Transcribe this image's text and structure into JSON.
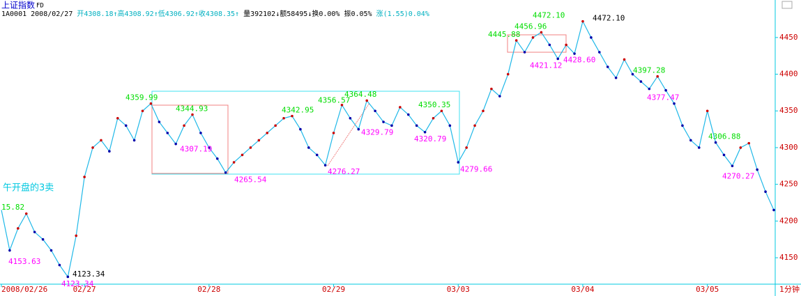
{
  "chart_data": {
    "type": "line",
    "title": "上证指数",
    "subtitle": "FD",
    "info": [
      "1A0001 2008/02/27",
      "开4308.18↑高4308.92↑低4306.92↑收4308.35↑",
      "量392102↓额58495↓换0.00% 振0.05%",
      "涨(1.55)0.04%"
    ],
    "note": "午开盘的3卖",
    "period": "1分钟",
    "categories": [
      "2008/02/26",
      null,
      null,
      null,
      null,
      null,
      null,
      null,
      null,
      null,
      "02/27",
      null,
      null,
      null,
      null,
      null,
      null,
      null,
      null,
      null,
      null,
      null,
      null,
      null,
      null,
      "02/28",
      null,
      null,
      null,
      null,
      null,
      null,
      null,
      null,
      null,
      null,
      null,
      null,
      null,
      null,
      "02/29",
      null,
      null,
      null,
      null,
      null,
      null,
      null,
      null,
      null,
      null,
      null,
      null,
      null,
      null,
      "03/03",
      null,
      null,
      null,
      null,
      null,
      null,
      null,
      null,
      null,
      null,
      null,
      null,
      null,
      null,
      "03/04",
      null,
      null,
      null,
      null,
      null,
      null,
      null,
      null,
      null,
      null,
      null,
      null,
      null,
      null,
      "03/05",
      null,
      null,
      null,
      null,
      null,
      null,
      null,
      null
    ],
    "series": [
      {
        "color": "#1fb8e8",
        "values": [
          4215,
          4160,
          4190,
          4210,
          4185,
          4175,
          4160,
          4140,
          4124,
          4180,
          4260,
          4300,
          4310,
          4295,
          4340,
          4330,
          4310,
          4350,
          4360,
          4335,
          4320,
          4305,
          4330,
          4345,
          4320,
          4300,
          4285,
          4266,
          4280,
          4290,
          4300,
          4310,
          4320,
          4330,
          4340,
          4343,
          4325,
          4300,
          4290,
          4276,
          4320,
          4358,
          4340,
          4325,
          4364,
          4350,
          4335,
          4330,
          4355,
          4345,
          4330,
          4321,
          4340,
          4350,
          4330,
          4280,
          4300,
          4330,
          4350,
          4380,
          4370,
          4400,
          4446,
          4430,
          4450,
          4457,
          4440,
          4421,
          4440,
          4428,
          4472,
          4450,
          4430,
          4410,
          4395,
          4420,
          4400,
          4390,
          4380,
          4397,
          4378,
          4360,
          4330,
          4310,
          4300,
          4350,
          4307,
          4290,
          4275,
          4300,
          4306,
          4270,
          4240,
          4215
        ]
      }
    ],
    "ylim": [
      4114,
      4484
    ],
    "yticks": [
      4150,
      4200,
      4250,
      4300,
      4350,
      4400,
      4450
    ],
    "annotations": [
      {
        "label": "15.82",
        "color": "#00dd00"
      },
      {
        "label": "4153.63",
        "value": 4153.63,
        "color": "#ff00ff"
      },
      {
        "label": "4123.34",
        "value": 4123.34,
        "color": "#ff00ff"
      },
      {
        "label": "4123.34",
        "value": 4123.34,
        "color": "#000000"
      },
      {
        "label": "4359.99",
        "value": 4359.99,
        "color": "#00dd00"
      },
      {
        "label": "4344.93",
        "value": 4344.93,
        "color": "#00dd00"
      },
      {
        "label": "4307.19",
        "value": 4307.19,
        "color": "#ff00ff"
      },
      {
        "label": "4265.54",
        "value": 4265.54,
        "color": "#ff00ff"
      },
      {
        "label": "4342.95",
        "value": 4342.95,
        "color": "#00dd00"
      },
      {
        "label": "4356.57",
        "value": 4356.57,
        "color": "#00dd00"
      },
      {
        "label": "4364.48",
        "value": 4364.48,
        "color": "#00dd00"
      },
      {
        "label": "4329.79",
        "value": 4329.79,
        "color": "#ff00ff"
      },
      {
        "label": "4276.27",
        "value": 4276.27,
        "color": "#ff00ff"
      },
      {
        "label": "4320.79",
        "value": 4320.79,
        "color": "#ff00ff"
      },
      {
        "label": "4350.35",
        "value": 4350.35,
        "color": "#00dd00"
      },
      {
        "label": "4279.66",
        "value": 4279.66,
        "color": "#ff00ff"
      },
      {
        "label": "4445.88",
        "value": 4445.88,
        "color": "#00dd00"
      },
      {
        "label": "4456.96",
        "value": 4456.96,
        "color": "#00dd00"
      },
      {
        "label": "4472.10",
        "value": 4472.1,
        "color": "#00dd00"
      },
      {
        "label": "4472.10",
        "value": 4472.1,
        "color": "#000000"
      },
      {
        "label": "4421.12",
        "value": 4421.12,
        "color": "#ff00ff"
      },
      {
        "label": "4428.60",
        "value": 4428.6,
        "color": "#ff00ff"
      },
      {
        "label": "4397.28",
        "value": 4397.28,
        "color": "#00dd00"
      },
      {
        "label": "4377.47",
        "value": 4377.47,
        "color": "#ff00ff"
      },
      {
        "label": "4306.88",
        "value": 4306.88,
        "color": "#00dd00"
      },
      {
        "label": "4270.27",
        "value": 4270.27,
        "color": "#ff00ff"
      }
    ]
  }
}
